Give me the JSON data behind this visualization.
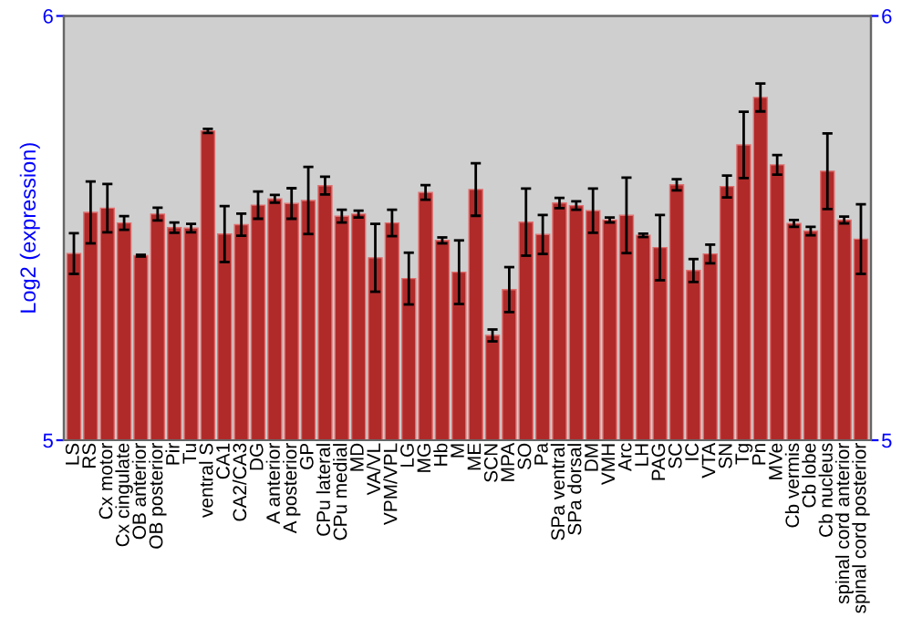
{
  "chart_data": {
    "type": "bar",
    "ylabel": "Log2 (expression)",
    "categories": [
      "LS",
      "RS",
      "Cx motor",
      "Cx cingulate",
      "OB anterior",
      "OB posterior",
      "Pir",
      "Tu",
      "ventral S",
      "CA1",
      "CA2/CA3",
      "DG",
      "A anterior",
      "A posterior",
      "GP",
      "CPu lateral",
      "CPu medial",
      "MD",
      "VA/VL",
      "VPM/VPL",
      "LG",
      "MG",
      "Hb",
      "M",
      "ME",
      "SCN",
      "MPA",
      "SO",
      "Pa",
      "SPa ventral",
      "SPa dorsal",
      "DM",
      "VMH",
      "Arc",
      "LH",
      "PAG",
      "SC",
      "IC",
      "VTA",
      "SN",
      "Tg",
      "Pn",
      "MVe",
      "Cb vermis",
      "Cb lobe",
      "Cb nucleus",
      "spinal cord anterior",
      "spinal cord posterior"
    ],
    "values": [
      5.44,
      5.537,
      5.547,
      5.512,
      5.435,
      5.533,
      5.501,
      5.5,
      5.729,
      5.486,
      5.508,
      5.554,
      5.569,
      5.558,
      5.565,
      5.6,
      5.528,
      5.533,
      5.43,
      5.512,
      5.381,
      5.584,
      5.471,
      5.396,
      5.591,
      5.247,
      5.355,
      5.514,
      5.485,
      5.559,
      5.553,
      5.541,
      5.519,
      5.53,
      5.483,
      5.454,
      5.602,
      5.4,
      5.439,
      5.598,
      5.696,
      5.808,
      5.649,
      5.511,
      5.493,
      5.634,
      5.519,
      5.474
    ],
    "errors": [
      0.048,
      0.073,
      0.057,
      0.016,
      0.002,
      0.015,
      0.012,
      0.01,
      0.005,
      0.066,
      0.026,
      0.032,
      0.009,
      0.036,
      0.079,
      0.021,
      0.015,
      0.008,
      0.08,
      0.031,
      0.061,
      0.017,
      0.007,
      0.075,
      0.062,
      0.014,
      0.053,
      0.079,
      0.046,
      0.012,
      0.01,
      0.052,
      0.006,
      0.089,
      0.004,
      0.077,
      0.013,
      0.027,
      0.022,
      0.026,
      0.078,
      0.033,
      0.023,
      0.008,
      0.01,
      0.089,
      0.008,
      0.082
    ],
    "color": "#b02a2a",
    "ylim": [
      5,
      6
    ],
    "yticks": [
      5,
      6
    ],
    "y2lim": [
      5,
      6
    ],
    "y2ticks": [
      5,
      6
    ],
    "grid": false
  }
}
